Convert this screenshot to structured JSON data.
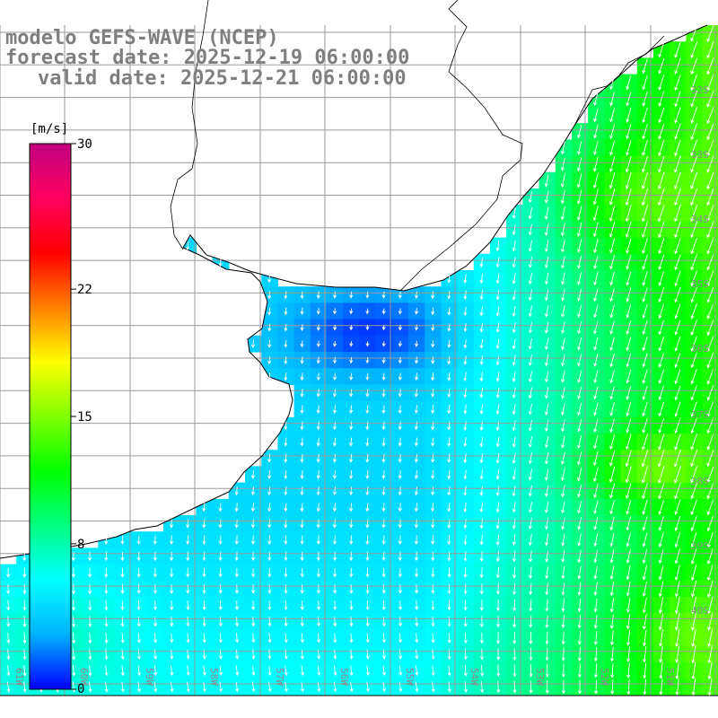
{
  "title": {
    "model": "modelo GEFS-WAVE (NCEP)",
    "forecast": "forecast date: 2025-12-19 06:00:00",
    "valid": "valid date: 2025-12-21 06:00:00"
  },
  "colorbar": {
    "unit": "[m/s]",
    "ticks": [
      "30",
      "22",
      "15",
      "8",
      "0"
    ],
    "tick_values": [
      30,
      22,
      15,
      8,
      0
    ],
    "min": 0,
    "max": 30,
    "colors": [
      "#0000ff",
      "#00b2ff",
      "#00ffff",
      "#00ff80",
      "#00ff00",
      "#80ff00",
      "#ffff00",
      "#ff8000",
      "#ff0000",
      "#ff0060",
      "#c0007f"
    ]
  },
  "map": {
    "lon_labels": [
      "61W",
      "60W",
      "59W",
      "58W",
      "57W",
      "56W",
      "55W",
      "54W",
      "53W",
      "52W",
      "51W"
    ],
    "lat_labels": [
      "32S",
      "33S",
      "34S",
      "35S",
      "36S",
      "37S",
      "38S",
      "39S",
      "40S"
    ],
    "colors": {
      "land": "#ffffff",
      "grid": "#9a9a9a",
      "coast": "#000000",
      "arrow": "#ffffff"
    }
  }
}
